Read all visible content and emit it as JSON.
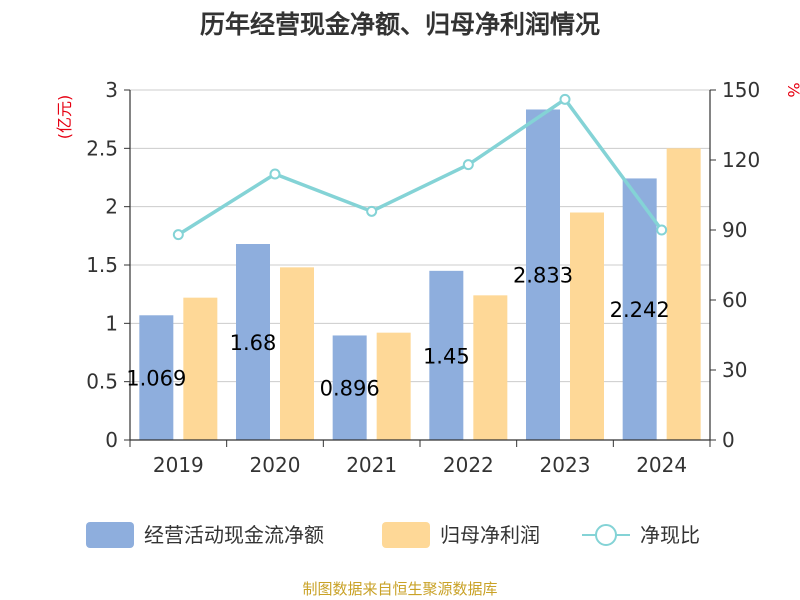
{
  "title": "历年经营现金净额、归母净利润情况",
  "source": "制图数据来自恒生聚源数据库",
  "colors": {
    "cash": "#8eaedd",
    "profit": "#fed897",
    "ratio": "#84d3d6",
    "unit": "#e60012"
  },
  "chart_data": {
    "type": "bar",
    "categories": [
      "2019",
      "2020",
      "2021",
      "2022",
      "2023",
      "2024"
    ],
    "series": [
      {
        "name": "经营活动现金流净额",
        "type": "bar",
        "axis": "left",
        "values": [
          1.069,
          1.68,
          0.896,
          1.45,
          2.833,
          2.242
        ],
        "labels": [
          "1.069",
          "1.68",
          "0.896",
          "1.45",
          "2.833",
          "2.242"
        ]
      },
      {
        "name": "归母净利润",
        "type": "bar",
        "axis": "left",
        "values": [
          1.22,
          1.48,
          0.92,
          1.24,
          1.95,
          2.5
        ]
      },
      {
        "name": "净现比",
        "type": "line",
        "axis": "right",
        "values": [
          88,
          114,
          98,
          118,
          146,
          90
        ]
      }
    ],
    "left_axis": {
      "unit": "(亿元)",
      "ylim": [
        0,
        3
      ],
      "ticks": [
        "0",
        "0.5",
        "1",
        "1.5",
        "2",
        "2.5",
        "3"
      ]
    },
    "right_axis": {
      "unit": "%",
      "ylim": [
        0,
        150
      ],
      "ticks": [
        "0",
        "30",
        "60",
        "90",
        "120",
        "150"
      ]
    },
    "grid": true,
    "legend_position": "bottom"
  }
}
